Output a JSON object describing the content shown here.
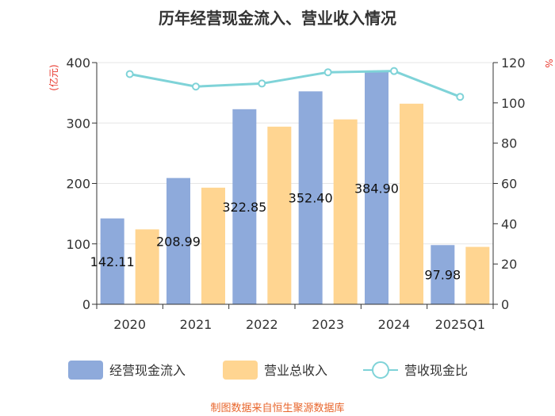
{
  "chart_data": {
    "type": "bar+line",
    "title": "历年经营现金流入、营业收入情况",
    "categories": [
      "2020",
      "2021",
      "2022",
      "2023",
      "2024",
      "2025Q1"
    ],
    "series": [
      {
        "name": "经营现金流入",
        "type": "bar",
        "axis": "left",
        "color": "#8eaadb",
        "values": [
          142.11,
          208.99,
          322.85,
          352.4,
          384.9,
          97.98
        ],
        "labels": [
          "142.11",
          "208.99",
          "322.85",
          "352.40",
          "384.90",
          "97.98"
        ]
      },
      {
        "name": "营业总收入",
        "type": "bar",
        "axis": "left",
        "color": "#ffd591",
        "values": [
          124,
          193,
          294,
          306,
          332,
          95
        ]
      },
      {
        "name": "营收现金比",
        "type": "line",
        "axis": "right",
        "color": "#7fd3d8",
        "values": [
          114.3,
          108.1,
          109.6,
          115.2,
          115.8,
          103.0
        ]
      }
    ],
    "left_axis": {
      "unit": "(亿元)",
      "ylim": [
        0,
        400
      ],
      "ticks": [
        0,
        100,
        200,
        300,
        400
      ]
    },
    "right_axis": {
      "unit": "%",
      "ylim": [
        0,
        120
      ],
      "ticks": [
        0,
        20,
        40,
        60,
        80,
        100,
        120
      ]
    },
    "legend_position": "bottom",
    "source": "制图数据来自恒生聚源数据库"
  }
}
